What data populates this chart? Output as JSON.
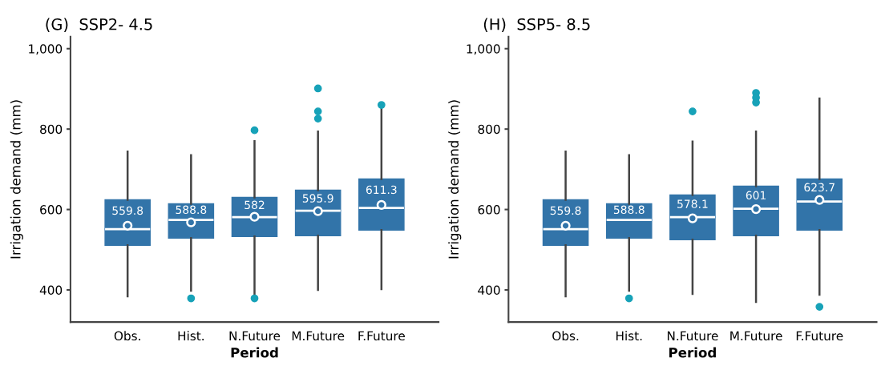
{
  "chart_data": [
    {
      "type": "box",
      "title": "(G)  SSP2- 4.5",
      "xlabel": "Period",
      "ylabel": "Irrigation demand (mm)",
      "categories": [
        "Obs.",
        "Hist.",
        "N.Future",
        "M.Future",
        "F.Future"
      ],
      "color": "#3274a9",
      "ylim": [
        320,
        1030
      ],
      "yticks": [
        400,
        600,
        800,
        {
          "value": 1000,
          "label": "1,000"
        }
      ],
      "grid": false,
      "boxes": [
        {
          "low": 384,
          "q1": 511,
          "median": 551,
          "q3": 624,
          "high": 744,
          "mean": 559.8
        },
        {
          "low": 398,
          "q1": 529,
          "median": 574,
          "q3": 614,
          "high": 735,
          "mean": 568,
          "outliers": [
            379
          ]
        },
        {
          "low": 388,
          "q1": 533,
          "median": 581,
          "q3": 630,
          "high": 770,
          "mean": 582,
          "outliers": [
            797,
            379
          ]
        },
        {
          "low": 400,
          "q1": 535,
          "median": 597,
          "q3": 648,
          "high": 794,
          "mean": 595.9,
          "outliers": [
            901,
            844,
            826
          ]
        },
        {
          "low": 402,
          "q1": 549,
          "median": 604,
          "q3": 676,
          "high": 855,
          "mean": 611.3,
          "outliers": [
            860
          ]
        }
      ],
      "annotations": [
        "559.8",
        "588.8",
        "582",
        "595.9",
        "611.3"
      ]
    },
    {
      "type": "box",
      "title": "(H)  SSP5- 8.5",
      "xlabel": "Period",
      "ylabel": "Irrigation demand (mm)",
      "categories": [
        "Obs.",
        "Hist.",
        "N.Future",
        "M.Future",
        "F.Future"
      ],
      "color": "#3274a9",
      "ylim": [
        320,
        1030
      ],
      "yticks": [
        400,
        600,
        800,
        {
          "value": 1000,
          "label": "1,000"
        }
      ],
      "grid": false,
      "boxes": [
        {
          "low": 384,
          "q1": 511,
          "median": 551,
          "q3": 624,
          "high": 744,
          "mean": 559.8
        },
        {
          "low": 398,
          "q1": 529,
          "median": 574,
          "q3": 614,
          "high": 735,
          "outliers": [
            379
          ]
        },
        {
          "low": 390,
          "q1": 525,
          "median": 581,
          "q3": 636,
          "high": 769,
          "mean": 578.1,
          "outliers": [
            844
          ]
        },
        {
          "low": 370,
          "q1": 535,
          "median": 602,
          "q3": 658,
          "high": 794,
          "mean": 601,
          "outliers": [
            890,
            878,
            866
          ]
        },
        {
          "low": 388,
          "q1": 549,
          "median": 620,
          "q3": 676,
          "high": 876,
          "mean": 623.7,
          "outliers": [
            358
          ]
        }
      ],
      "annotations": [
        "559.8",
        "588.8",
        "578.1",
        "601",
        "623.7"
      ]
    }
  ]
}
